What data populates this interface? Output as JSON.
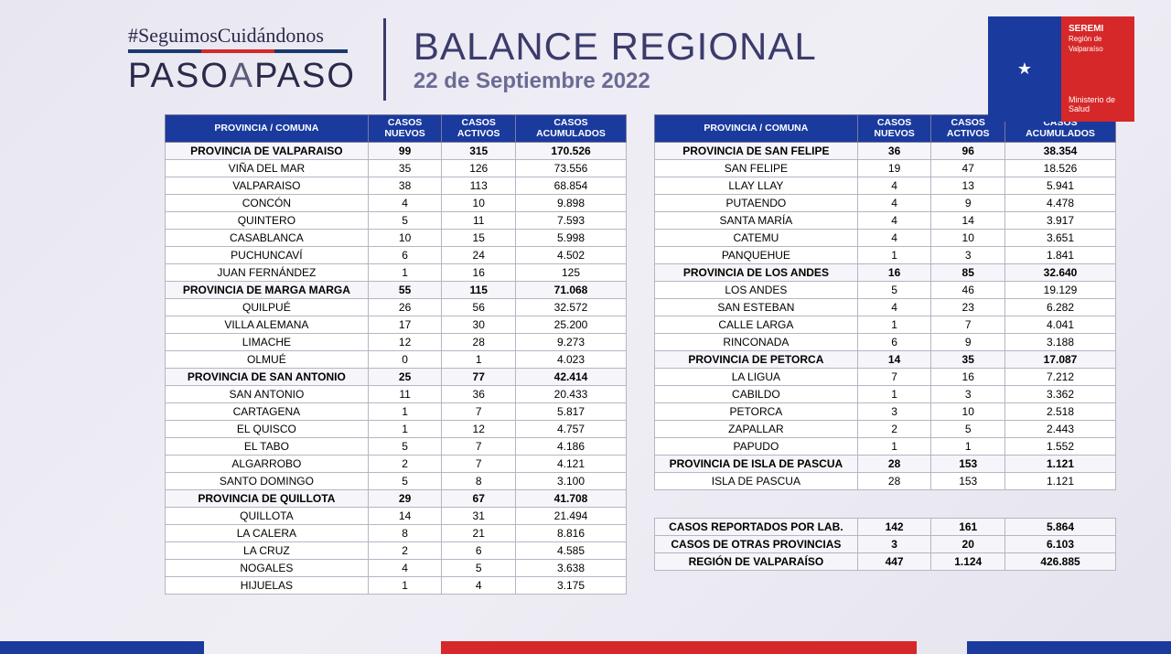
{
  "header": {
    "hashtag": "#SeguimosCuidándonos",
    "logo_line1": "PASO",
    "logo_a": "A",
    "logo_line2": "PASO",
    "title": "BALANCE REGIONAL",
    "date": "22 de Septiembre 2022",
    "seremi_top": "SEREMI",
    "seremi_sub": "Región de Valparaíso",
    "seremi_foot": "Ministerio de Salud"
  },
  "columns": [
    "PROVINCIA / COMUNA",
    "CASOS NUEVOS",
    "CASOS ACTIVOS",
    "CASOS ACUMULADOS"
  ],
  "left": [
    {
      "p": 1,
      "n": "PROVINCIA DE VALPARAISO",
      "a": "99",
      "b": "315",
      "c": "170.526"
    },
    {
      "p": 0,
      "n": "VIÑA DEL MAR",
      "a": "35",
      "b": "126",
      "c": "73.556"
    },
    {
      "p": 0,
      "n": "VALPARAISO",
      "a": "38",
      "b": "113",
      "c": "68.854"
    },
    {
      "p": 0,
      "n": "CONCÓN",
      "a": "4",
      "b": "10",
      "c": "9.898"
    },
    {
      "p": 0,
      "n": "QUINTERO",
      "a": "5",
      "b": "11",
      "c": "7.593"
    },
    {
      "p": 0,
      "n": "CASABLANCA",
      "a": "10",
      "b": "15",
      "c": "5.998"
    },
    {
      "p": 0,
      "n": "PUCHUNCAVÍ",
      "a": "6",
      "b": "24",
      "c": "4.502"
    },
    {
      "p": 0,
      "n": "JUAN FERNÁNDEZ",
      "a": "1",
      "b": "16",
      "c": "125"
    },
    {
      "p": 1,
      "n": "PROVINCIA DE MARGA MARGA",
      "a": "55",
      "b": "115",
      "c": "71.068"
    },
    {
      "p": 0,
      "n": "QUILPUÉ",
      "a": "26",
      "b": "56",
      "c": "32.572"
    },
    {
      "p": 0,
      "n": "VILLA ALEMANA",
      "a": "17",
      "b": "30",
      "c": "25.200"
    },
    {
      "p": 0,
      "n": "LIMACHE",
      "a": "12",
      "b": "28",
      "c": "9.273"
    },
    {
      "p": 0,
      "n": "OLMUÉ",
      "a": "0",
      "b": "1",
      "c": "4.023"
    },
    {
      "p": 1,
      "n": "PROVINCIA DE SAN ANTONIO",
      "a": "25",
      "b": "77",
      "c": "42.414"
    },
    {
      "p": 0,
      "n": "SAN ANTONIO",
      "a": "11",
      "b": "36",
      "c": "20.433"
    },
    {
      "p": 0,
      "n": "CARTAGENA",
      "a": "1",
      "b": "7",
      "c": "5.817"
    },
    {
      "p": 0,
      "n": "EL QUISCO",
      "a": "1",
      "b": "12",
      "c": "4.757"
    },
    {
      "p": 0,
      "n": "EL TABO",
      "a": "5",
      "b": "7",
      "c": "4.186"
    },
    {
      "p": 0,
      "n": "ALGARROBO",
      "a": "2",
      "b": "7",
      "c": "4.121"
    },
    {
      "p": 0,
      "n": "SANTO DOMINGO",
      "a": "5",
      "b": "8",
      "c": "3.100"
    },
    {
      "p": 1,
      "n": "PROVINCIA DE QUILLOTA",
      "a": "29",
      "b": "67",
      "c": "41.708"
    },
    {
      "p": 0,
      "n": "QUILLOTA",
      "a": "14",
      "b": "31",
      "c": "21.494"
    },
    {
      "p": 0,
      "n": "LA CALERA",
      "a": "8",
      "b": "21",
      "c": "8.816"
    },
    {
      "p": 0,
      "n": "LA CRUZ",
      "a": "2",
      "b": "6",
      "c": "4.585"
    },
    {
      "p": 0,
      "n": "NOGALES",
      "a": "4",
      "b": "5",
      "c": "3.638"
    },
    {
      "p": 0,
      "n": "HIJUELAS",
      "a": "1",
      "b": "4",
      "c": "3.175"
    }
  ],
  "right": [
    {
      "p": 1,
      "n": "PROVINCIA DE SAN FELIPE",
      "a": "36",
      "b": "96",
      "c": "38.354"
    },
    {
      "p": 0,
      "n": "SAN FELIPE",
      "a": "19",
      "b": "47",
      "c": "18.526"
    },
    {
      "p": 0,
      "n": "LLAY LLAY",
      "a": "4",
      "b": "13",
      "c": "5.941"
    },
    {
      "p": 0,
      "n": "PUTAENDO",
      "a": "4",
      "b": "9",
      "c": "4.478"
    },
    {
      "p": 0,
      "n": "SANTA MARÍA",
      "a": "4",
      "b": "14",
      "c": "3.917"
    },
    {
      "p": 0,
      "n": "CATEMU",
      "a": "4",
      "b": "10",
      "c": "3.651"
    },
    {
      "p": 0,
      "n": "PANQUEHUE",
      "a": "1",
      "b": "3",
      "c": "1.841"
    },
    {
      "p": 1,
      "n": "PROVINCIA DE LOS ANDES",
      "a": "16",
      "b": "85",
      "c": "32.640"
    },
    {
      "p": 0,
      "n": "LOS ANDES",
      "a": "5",
      "b": "46",
      "c": "19.129"
    },
    {
      "p": 0,
      "n": "SAN ESTEBAN",
      "a": "4",
      "b": "23",
      "c": "6.282"
    },
    {
      "p": 0,
      "n": "CALLE LARGA",
      "a": "1",
      "b": "7",
      "c": "4.041"
    },
    {
      "p": 0,
      "n": "RINCONADA",
      "a": "6",
      "b": "9",
      "c": "3.188"
    },
    {
      "p": 1,
      "n": "PROVINCIA DE PETORCA",
      "a": "14",
      "b": "35",
      "c": "17.087"
    },
    {
      "p": 0,
      "n": "LA LIGUA",
      "a": "7",
      "b": "16",
      "c": "7.212"
    },
    {
      "p": 0,
      "n": "CABILDO",
      "a": "1",
      "b": "3",
      "c": "3.362"
    },
    {
      "p": 0,
      "n": "PETORCA",
      "a": "3",
      "b": "10",
      "c": "2.518"
    },
    {
      "p": 0,
      "n": "ZAPALLAR",
      "a": "2",
      "b": "5",
      "c": "2.443"
    },
    {
      "p": 0,
      "n": "PAPUDO",
      "a": "1",
      "b": "1",
      "c": "1.552"
    },
    {
      "p": 1,
      "n": "PROVINCIA DE ISLA DE PASCUA",
      "a": "28",
      "b": "153",
      "c": "1.121"
    },
    {
      "p": 0,
      "n": "ISLA DE PASCUA",
      "a": "28",
      "b": "153",
      "c": "1.121"
    }
  ],
  "summary": [
    {
      "n": "CASOS REPORTADOS POR LAB.",
      "a": "142",
      "b": "161",
      "c": "5.864"
    },
    {
      "n": "CASOS DE OTRAS PROVINCIAS",
      "a": "3",
      "b": "20",
      "c": "6.103"
    },
    {
      "n": "REGIÓN DE VALPARAÍSO",
      "a": "447",
      "b": "1.124",
      "c": "426.885"
    }
  ],
  "colwidths": [
    "44%",
    "16%",
    "16%",
    "24%"
  ]
}
